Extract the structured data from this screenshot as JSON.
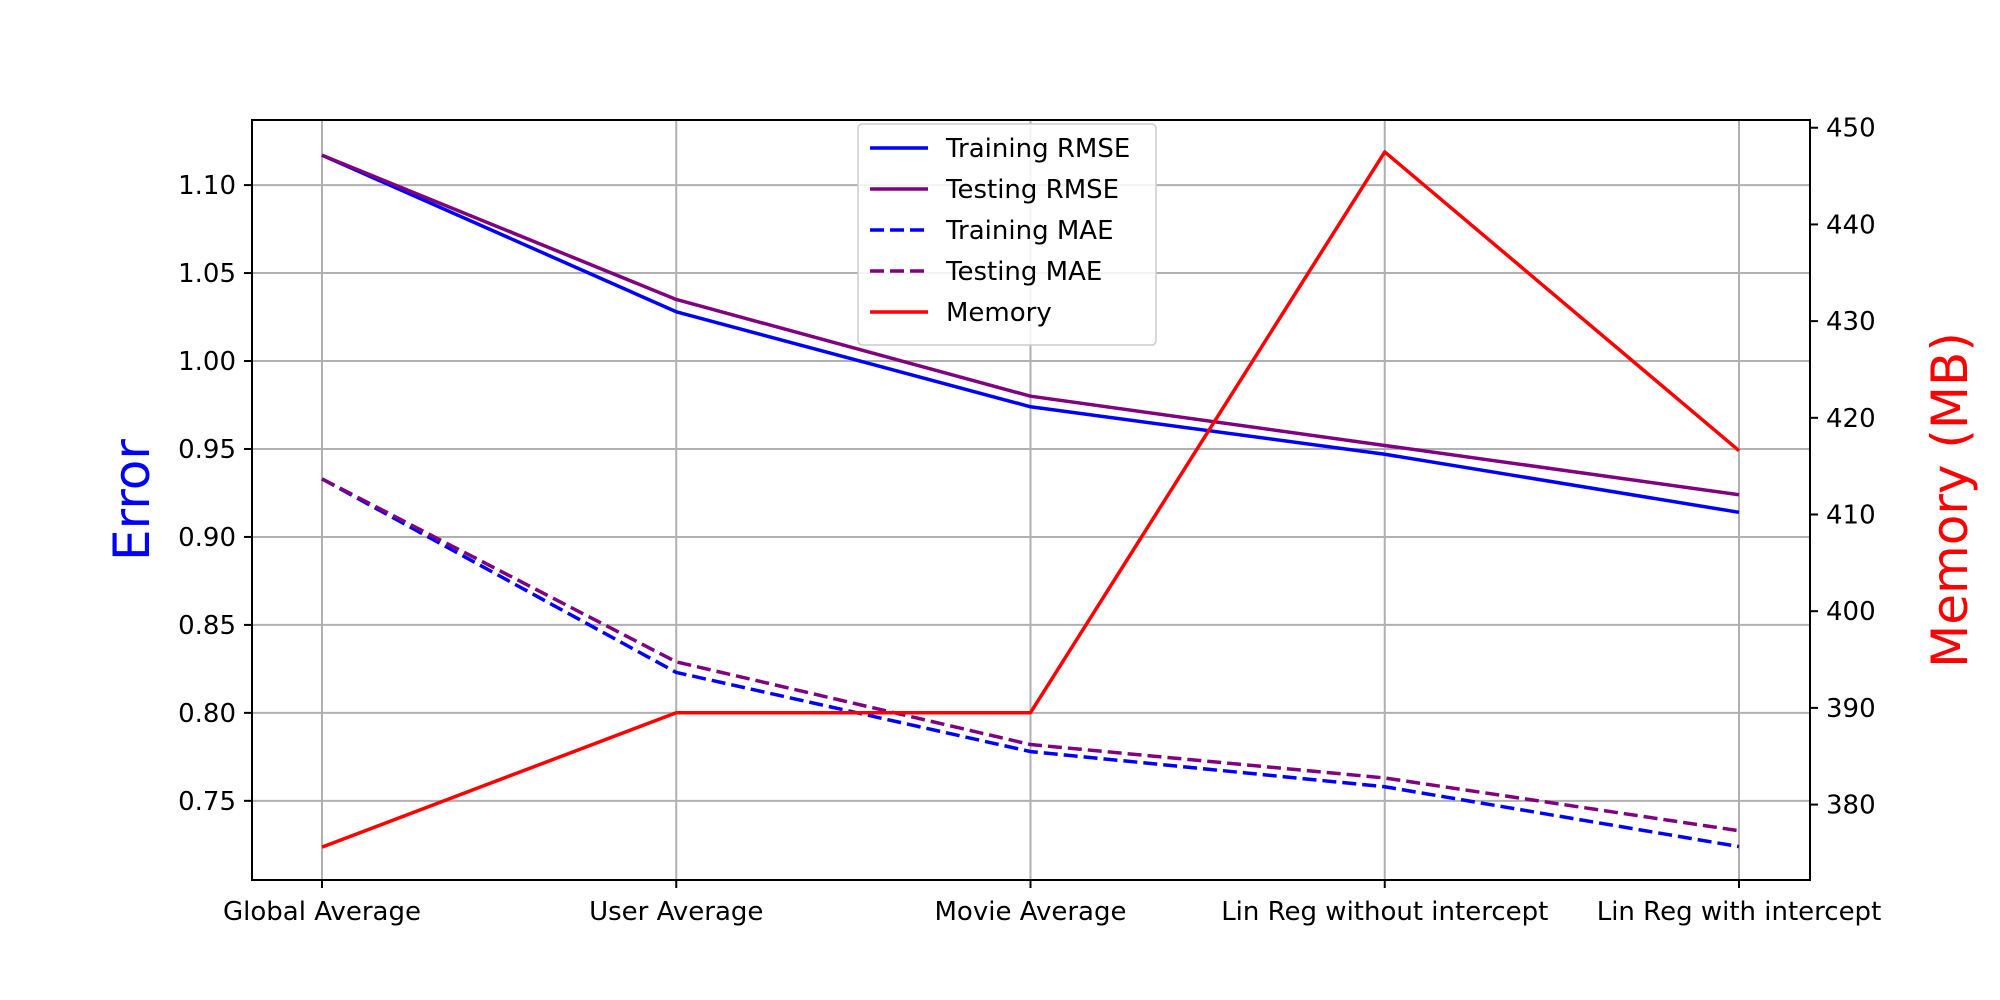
{
  "chart_data": {
    "type": "line",
    "categories": [
      "Global Average",
      "User Average",
      "Movie Average",
      "Lin Reg without intercept",
      "Lin Reg with intercept"
    ],
    "ylabel": "Error",
    "y2label": "Memory (MB)",
    "ylim": [
      0.705,
      1.137
    ],
    "y2lim": [
      372.2,
      450.8
    ],
    "yticks": [
      "0.75",
      "0.80",
      "0.85",
      "0.90",
      "0.95",
      "1.00",
      "1.05",
      "1.10"
    ],
    "y2ticks": [
      "380",
      "390",
      "400",
      "410",
      "420",
      "430",
      "440",
      "450"
    ],
    "grid": true,
    "legend_position": "top-center",
    "series": [
      {
        "name": "Training RMSE",
        "axis": "left",
        "style": "solid",
        "color": "#0000ff",
        "values": [
          1.117,
          1.028,
          0.974,
          0.947,
          0.914
        ]
      },
      {
        "name": "Testing RMSE",
        "axis": "left",
        "style": "solid",
        "color": "#800080",
        "values": [
          1.117,
          1.035,
          0.98,
          0.952,
          0.924
        ]
      },
      {
        "name": "Training MAE",
        "axis": "left",
        "style": "dashed",
        "color": "#0000ff",
        "values": [
          0.933,
          0.823,
          0.778,
          0.758,
          0.724
        ]
      },
      {
        "name": "Testing MAE",
        "axis": "left",
        "style": "dashed",
        "color": "#800080",
        "values": [
          0.933,
          0.829,
          0.782,
          0.763,
          0.733
        ]
      },
      {
        "name": "Memory",
        "axis": "right",
        "style": "solid",
        "color": "#ff0000",
        "values": [
          375.6,
          389.5,
          389.5,
          447.5,
          416.6
        ]
      }
    ],
    "colors": {
      "ylabel": "#0000ff",
      "y2label": "#ff0000"
    }
  }
}
